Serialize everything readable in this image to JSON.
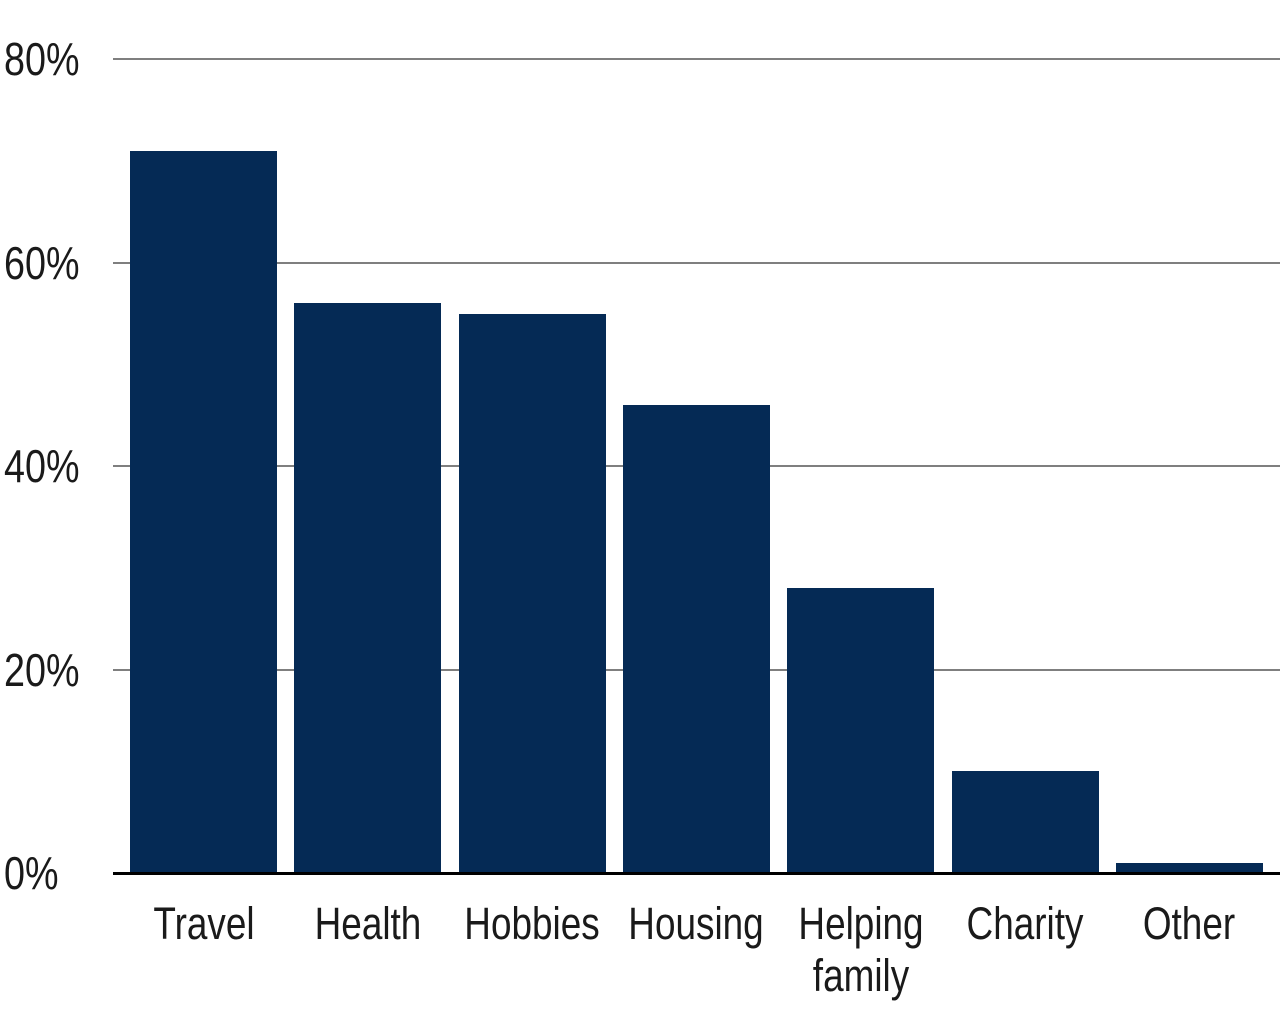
{
  "chart_data": {
    "type": "bar",
    "title": "",
    "subtitle": "",
    "xlabel": "",
    "ylabel": "",
    "categories": [
      "Travel",
      "Health",
      "Hobbies",
      "Housing",
      "Helping family",
      "Charity",
      "Other"
    ],
    "values": [
      71,
      56,
      55,
      46,
      28,
      10,
      1
    ],
    "value_unit": "%",
    "ylim": [
      0,
      80
    ],
    "yticks": [
      0,
      20,
      40,
      60,
      80
    ],
    "ytick_labels": [
      "0%",
      "20%",
      "40%",
      "60%",
      "80%"
    ],
    "grid": "horizontal",
    "legend_position": "none",
    "colors": {
      "bar": "#052a55",
      "gridline": "#7f7f7f",
      "baseline": "#000000",
      "text": "#1a1a1a",
      "background": "#ffffff"
    }
  }
}
